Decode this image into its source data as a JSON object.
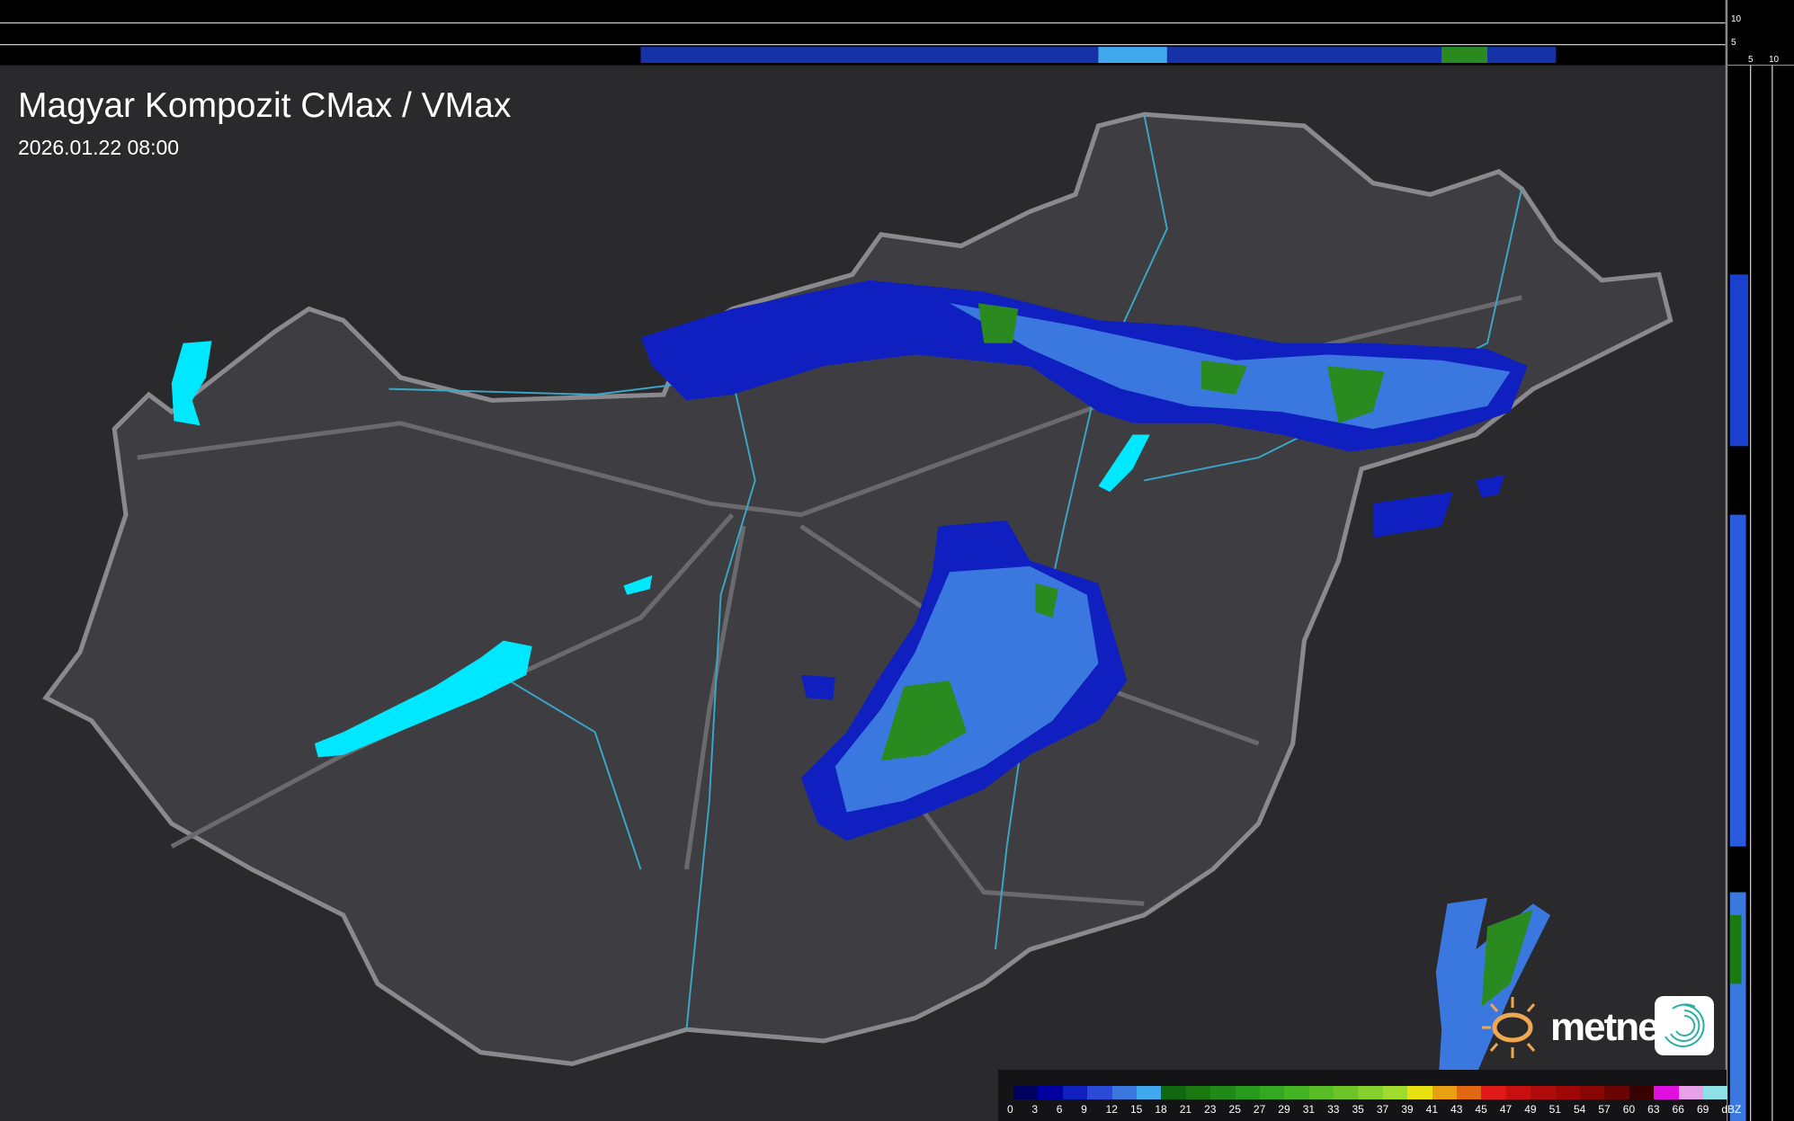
{
  "header": {
    "title": "Magyar Kompozit CMax / VMax",
    "timestamp": "2026.01.22 08:00"
  },
  "profile_axes": {
    "top_ticks": [
      "10",
      "5"
    ],
    "right_ticks": [
      "5",
      "10"
    ]
  },
  "legend": {
    "unit": "dBZ",
    "labels": [
      "0",
      "3",
      "6",
      "9",
      "12",
      "15",
      "18",
      "21",
      "23",
      "25",
      "27",
      "29",
      "31",
      "33",
      "35",
      "37",
      "39",
      "41",
      "43",
      "45",
      "47",
      "49",
      "51",
      "54",
      "57",
      "60",
      "63",
      "66",
      "69"
    ],
    "colors": [
      "#000060",
      "#0000a0",
      "#1020c0",
      "#2a4ad8",
      "#3a78e0",
      "#40a8ec",
      "#106810",
      "#1a7a10",
      "#208a18",
      "#289a1c",
      "#34a820",
      "#44b422",
      "#58bc24",
      "#6cc428",
      "#84d02c",
      "#a0dc30",
      "#e8e010",
      "#e8a010",
      "#e06810",
      "#e01818",
      "#c81010",
      "#b00c0c",
      "#a00808",
      "#880606",
      "#6c0404",
      "#380202",
      "#e010e0",
      "#e8a0e8",
      "#90e0e8"
    ]
  },
  "logo": {
    "text": "metnet",
    "sun_color": "#f0a850",
    "badge_color": "#2ab0a0"
  },
  "map": {
    "water_color": "#00e8ff",
    "river_color": "#3aa8c8",
    "border_color": "#8a8a8e",
    "land_color": "#3e3e42"
  }
}
